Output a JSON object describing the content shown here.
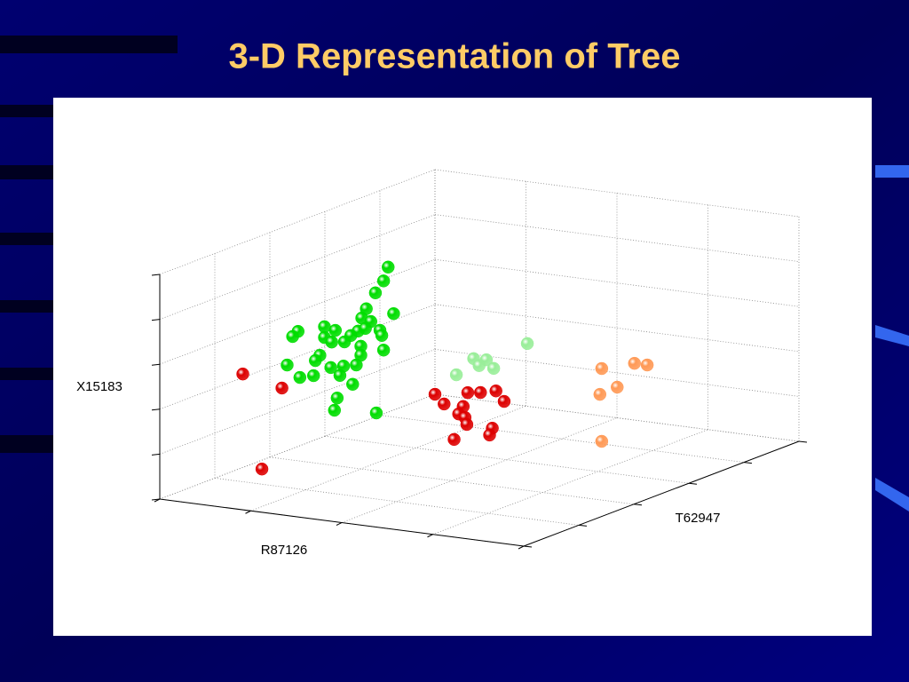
{
  "chart_data": {
    "type": "scatter3d",
    "title": "3-D Representation of Tree",
    "xlabel": "R87126",
    "ylabel": "T62947",
    "zlabel": "X15183",
    "xlim": [
      0,
      4
    ],
    "ylim": [
      0,
      5
    ],
    "zlim": [
      0,
      5
    ],
    "xticks": [
      0,
      1,
      2,
      3,
      4
    ],
    "yticks": [
      0,
      1,
      2,
      3,
      4,
      5
    ],
    "zticks": [
      0,
      1,
      2,
      3,
      4,
      5
    ],
    "grid": true,
    "series": [
      {
        "color": "#00dd00",
        "x": [
          1.3,
          1.25,
          1.16,
          1.06,
          1.36,
          1.01,
          1.11,
          0.6,
          0.72,
          0.31,
          0.25,
          0.6,
          0.68,
          0.82,
          0.97,
          1.05,
          1.21,
          1.23,
          0.89,
          1.0,
          1.25,
          0.55,
          0.5,
          0.19,
          0.67,
          0.81,
          0.95,
          1.0,
          0.33,
          0.48,
          0.77,
          0.91,
          0.74,
          0.71,
          1.17
        ],
        "y": [
          2,
          2,
          2,
          2,
          2,
          2,
          2,
          2,
          2,
          2,
          2,
          2,
          2,
          2,
          2,
          2,
          2,
          2,
          2,
          2,
          2,
          2,
          2,
          2,
          2,
          2,
          2,
          2,
          2,
          2,
          2,
          2,
          2,
          2,
          2
        ],
        "z": [
          4.57,
          4.25,
          3.96,
          3.58,
          3.55,
          3.36,
          3.31,
          3.06,
          3.01,
          2.88,
          2.75,
          2.82,
          2.74,
          2.78,
          3.06,
          3.14,
          3.14,
          3.03,
          2.94,
          2.73,
          2.71,
          2.41,
          2.28,
          2.1,
          2.17,
          2.24,
          2.3,
          2.53,
          1.86,
          1.94,
          2.02,
          1.86,
          1.51,
          1.23,
          1.29
        ]
      },
      {
        "color": "#dd0000",
        "x": [
          1.21,
          1.31,
          1.57,
          1.71,
          1.88,
          1.97,
          1.52,
          1.47,
          1.54,
          1.56,
          1.84,
          1.81,
          1.42,
          0.61,
          0.82,
          1.04
        ],
        "y": [
          3,
          3,
          3,
          3,
          3,
          3,
          3,
          3,
          3,
          3,
          3,
          3,
          3,
          0.5,
          0.5,
          0.5
        ],
        "z": [
          1.25,
          1.06,
          1.38,
          1.42,
          1.5,
          1.29,
          1.06,
          0.88,
          0.82,
          0.67,
          0.66,
          0.5,
          0.3,
          2.71,
          0.65,
          2.51
        ]
      },
      {
        "color": "#99ee99",
        "x": [
          1.62,
          1.03,
          1.17,
          1.09,
          1.25,
          0.84
        ],
        "y": [
          4,
          4,
          4,
          4,
          4,
          4
        ],
        "z": [
          2.02,
          1.53,
          1.54,
          1.39,
          1.37,
          1.12
        ]
      },
      {
        "color": "#ff9955",
        "x": [
          2.74,
          3.1,
          3.24,
          2.91,
          2.72,
          2.74
        ],
        "y": [
          3.5,
          3.5,
          3.5,
          3.5,
          3.5,
          3.5
        ],
        "z": [
          1.99,
          2.2,
          2.2,
          1.62,
          1.41,
          0.37
        ]
      }
    ]
  }
}
